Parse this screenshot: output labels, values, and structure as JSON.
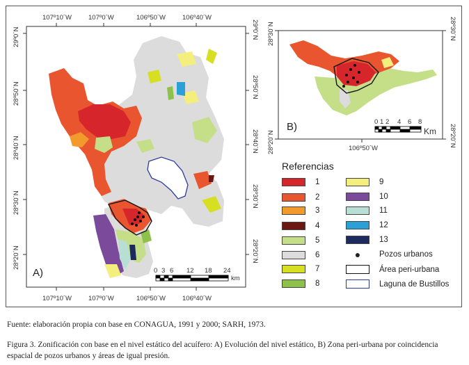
{
  "map_a": {
    "panel_label": "A)",
    "top_ticks": [
      "107º10´W",
      "107º0´W",
      "106º50´W",
      "106º40´W"
    ],
    "bottom_ticks": [
      "107º10´W",
      "107º0´W",
      "106º50´W",
      "106º40´W"
    ],
    "left_ticks": [
      "29º0´N",
      "28º50´N",
      "28º40´N",
      "28º30´N",
      "28º20´N"
    ],
    "right_ticks": [
      "29º0´N",
      "28º50´N",
      "28º40´N",
      "28º30´N",
      "28º20´N"
    ],
    "scale_labels": [
      "0",
      "3",
      "6",
      "12",
      "18",
      "24"
    ],
    "scale_unit": "km"
  },
  "map_b": {
    "panel_label": "B)",
    "left_tick": "28º30´N",
    "left_tick_bottom": "28º20´N",
    "right_tick": "28º30´N",
    "right_tick_bottom": "28º20´N",
    "bottom_tick": "106º50´W",
    "scale_labels": [
      "0",
      "1",
      "2",
      "4",
      "6",
      "8"
    ],
    "scale_unit": "Km"
  },
  "legend": {
    "title": "Referencias",
    "zones": [
      {
        "label": "1",
        "color": "#d7262b"
      },
      {
        "label": "2",
        "color": "#e9552e"
      },
      {
        "label": "3",
        "color": "#f39a2c"
      },
      {
        "label": "4",
        "color": "#6b1712"
      },
      {
        "label": "5",
        "color": "#c5de88"
      },
      {
        "label": "6",
        "color": "#dcdcdc"
      },
      {
        "label": "7",
        "color": "#d6df22"
      },
      {
        "label": "8",
        "color": "#8dc14a"
      },
      {
        "label": "9",
        "color": "#f4ee7c"
      },
      {
        "label": "10",
        "color": "#7c4a9b"
      },
      {
        "label": "11",
        "color": "#b9dfd4"
      },
      {
        "label": "12",
        "color": "#2a9fd8"
      },
      {
        "label": "13",
        "color": "#1d2a5e"
      }
    ],
    "wells_label": "Pozos urbanos",
    "periurban_label": "Área peri-urbana",
    "lagoon_label": "Laguna de Bustillos"
  },
  "source": "Fuente: elaboración propia con base en CONAGUA, 1991 y 2000; SARH, 1973.",
  "caption": "Figura 3. Zonificación con base en el nivel estático del acuífero: A) Evolución del nivel estático, B) Zona peri-urbana por coincidencia espacial de pozos urbanos y áreas de igual presión."
}
